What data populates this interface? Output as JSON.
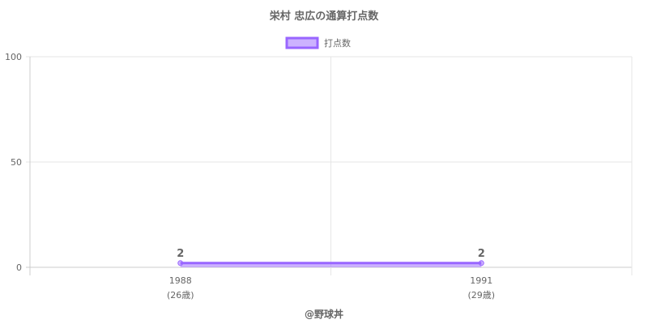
{
  "chart_data": {
    "type": "line",
    "title": "栄村 忠広の通算打点数",
    "categories": [
      "1988",
      "1991"
    ],
    "category_sublabels": [
      "(26歳)",
      "(29歳)"
    ],
    "series": [
      {
        "name": "打点数",
        "values": [
          2,
          2
        ],
        "color": "#9966ff",
        "fill": "rgba(153,102,255,0.5)"
      }
    ],
    "data_labels": [
      "2",
      "2"
    ],
    "ylim": [
      0,
      100
    ],
    "yticks": [
      "0",
      "50",
      "100"
    ],
    "grid": true,
    "legend": "top",
    "xlabel": "",
    "ylabel": ""
  },
  "footer": "@野球丼"
}
